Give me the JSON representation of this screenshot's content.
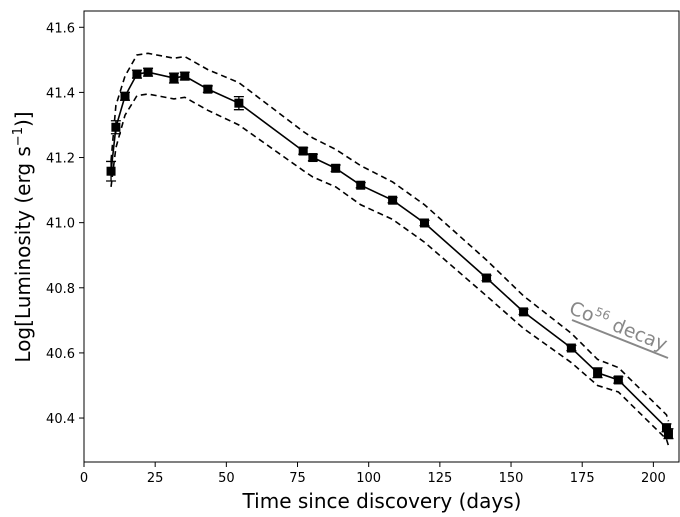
{
  "chart_data": {
    "type": "line",
    "xlabel": "Time since discovery (days)",
    "ylabel": [
      "Log[Luminosity (erg s",
      "−1",
      ")]"
    ],
    "annotation": [
      "Co",
      "56",
      " decay"
    ],
    "x": [
      9.5,
      11.2,
      14.4,
      18.6,
      22.5,
      31.6,
      35.4,
      43.5,
      54.4,
      77,
      80.4,
      88.4,
      97.2,
      108.4,
      119.6,
      141.4,
      154.4,
      171.2,
      180.4,
      187.7,
      204.6,
      205.3
    ],
    "series": [
      {
        "color": "#000000",
        "marker": "square",
        "dash": false,
        "values": [
          41.158,
          41.293,
          41.388,
          41.456,
          41.462,
          41.444,
          41.45,
          41.41,
          41.367,
          41.22,
          41.2,
          41.167,
          41.115,
          41.069,
          40.999,
          40.83,
          40.726,
          40.615,
          40.539,
          40.517,
          40.37,
          40.352
        ],
        "errors": [
          0.03,
          0.02,
          0.012,
          0.012,
          0.012,
          0.015,
          0.012,
          0.01,
          0.02,
          0.01,
          0.01,
          0.01,
          0.008,
          0.008,
          0.008,
          0.008,
          0.008,
          0.008,
          0.015,
          0.01,
          0.012,
          0.015
        ]
      },
      {
        "color": "#000000",
        "dash": true,
        "values": [
          41.19,
          41.36,
          41.45,
          41.515,
          41.52,
          41.505,
          41.51,
          41.47,
          41.43,
          41.28,
          41.26,
          41.225,
          41.175,
          41.125,
          41.055,
          40.885,
          40.775,
          40.66,
          40.58,
          40.555,
          40.41,
          40.39
        ]
      },
      {
        "color": "#000000",
        "dash": true,
        "values": [
          41.11,
          41.23,
          41.33,
          41.39,
          41.395,
          41.38,
          41.385,
          41.345,
          41.3,
          41.16,
          41.14,
          41.11,
          41.055,
          41.01,
          40.94,
          40.775,
          40.675,
          40.57,
          40.5,
          40.48,
          40.335,
          40.315
        ]
      }
    ],
    "xlim": [
      0,
      209
    ],
    "xticks": [
      0,
      25,
      50,
      75,
      100,
      125,
      150,
      175,
      200
    ],
    "ylim": [
      40.265,
      41.65
    ],
    "yticks": [
      40.4,
      40.6,
      40.8,
      {
        "value": 41,
        "label": "41.0"
      },
      41.2,
      41.4,
      41.6
    ],
    "grid": false
  }
}
